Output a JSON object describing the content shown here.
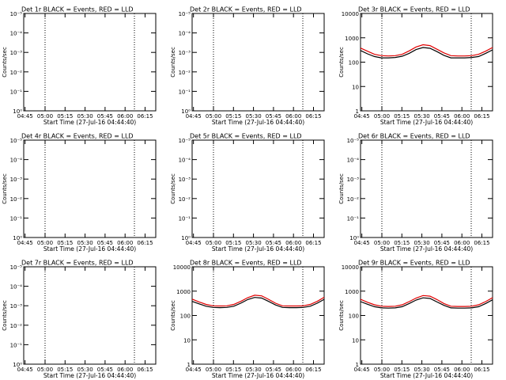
{
  "chart_data": [
    {
      "type": "line",
      "title": "Det 1r BLACK = Events, RED = LLD",
      "xlabel": "Start Time (27-Jul-16 04:44:40)",
      "ylabel": "Counts/sec",
      "x_ticks": [
        "04:45",
        "05:00",
        "05:15",
        "05:30",
        "05:45",
        "06:00",
        "06:15"
      ],
      "y_ticks": [
        "10⁰",
        "10⁻¹",
        "10⁻²",
        "10⁻³",
        "10⁻⁴",
        "10⁻⁵"
      ],
      "scale": "log-neg",
      "vlines": [
        "05:00",
        "06:07"
      ],
      "series": []
    },
    {
      "type": "line",
      "title": "Det 2r BLACK = Events, RED = LLD",
      "xlabel": "Start Time (27-Jul-16 04:44:40)",
      "ylabel": "Counts/sec",
      "x_ticks": [
        "04:45",
        "05:00",
        "05:15",
        "05:30",
        "05:45",
        "06:00",
        "06:15"
      ],
      "y_ticks": [
        "10⁰",
        "10⁻¹",
        "10⁻²",
        "10⁻³",
        "10⁻⁴",
        "10⁻⁵"
      ],
      "scale": "log-neg",
      "vlines": [
        "05:00",
        "06:07"
      ],
      "series": []
    },
    {
      "type": "line",
      "title": "Det 3r BLACK = Events, RED = LLD",
      "xlabel": "Start Time (27-Jul-16 04:44:40)",
      "ylabel": "Counts/sec",
      "x_ticks": [
        "04:45",
        "05:00",
        "05:15",
        "05:30",
        "05:45",
        "06:00",
        "06:15"
      ],
      "y_ticks": [
        "1",
        "10",
        "100",
        "1000",
        "10000"
      ],
      "scale": "log",
      "ylim": [
        1,
        10000
      ],
      "vlines": [
        "05:00",
        "06:07"
      ],
      "series": [
        {
          "color": "#000000",
          "x": [
            0,
            5,
            10,
            15,
            20,
            25,
            30,
            35,
            40,
            45,
            50,
            55,
            60,
            65,
            70,
            75,
            80,
            85,
            90,
            95
          ],
          "y": [
            300,
            220,
            170,
            150,
            150,
            155,
            175,
            230,
            330,
            400,
            370,
            270,
            190,
            150,
            150,
            150,
            155,
            170,
            230,
            320
          ]
        },
        {
          "color": "#e00000",
          "x": [
            0,
            5,
            10,
            15,
            20,
            25,
            30,
            35,
            40,
            45,
            50,
            55,
            60,
            65,
            70,
            75,
            80,
            85,
            90,
            95
          ],
          "y": [
            380,
            280,
            210,
            185,
            180,
            185,
            210,
            290,
            420,
            520,
            480,
            340,
            240,
            185,
            180,
            180,
            185,
            210,
            280,
            400
          ]
        }
      ]
    },
    {
      "type": "line",
      "title": "Det 4r BLACK = Events, RED = LLD",
      "xlabel": "Start Time (27-Jul-16 04:44:40)",
      "ylabel": "Counts/sec",
      "x_ticks": [
        "04:45",
        "05:00",
        "05:15",
        "05:30",
        "05:45",
        "06:00",
        "06:15"
      ],
      "y_ticks": [
        "10⁰",
        "10⁻¹",
        "10⁻²",
        "10⁻³",
        "10⁻⁴",
        "10⁻⁵"
      ],
      "scale": "log-neg",
      "vlines": [
        "05:00",
        "06:07"
      ],
      "series": []
    },
    {
      "type": "line",
      "title": "Det 5r BLACK = Events, RED = LLD",
      "xlabel": "Start Time (27-Jul-16 04:44:40)",
      "ylabel": "Counts/sec",
      "x_ticks": [
        "04:45",
        "05:00",
        "05:15",
        "05:30",
        "05:45",
        "06:00",
        "06:15"
      ],
      "y_ticks": [
        "10⁰",
        "10⁻¹",
        "10⁻²",
        "10⁻³",
        "10⁻⁴",
        "10⁻⁵"
      ],
      "scale": "log-neg",
      "vlines": [
        "05:00",
        "06:07"
      ],
      "series": []
    },
    {
      "type": "line",
      "title": "Det 6r BLACK = Events, RED = LLD",
      "xlabel": "Start Time (27-Jul-16 04:44:40)",
      "ylabel": "Counts/sec",
      "x_ticks": [
        "04:45",
        "05:00",
        "05:15",
        "05:30",
        "05:45",
        "06:00",
        "06:15"
      ],
      "y_ticks": [
        "10⁰",
        "10⁻¹",
        "10⁻²",
        "10⁻³",
        "10⁻⁴",
        "10⁻⁵"
      ],
      "scale": "log-neg",
      "vlines": [
        "05:00",
        "06:07"
      ],
      "series": []
    },
    {
      "type": "line",
      "title": "Det 7r BLACK = Events, RED = LLD",
      "xlabel": "Start Time (27-Jul-16 04:44:40)",
      "ylabel": "Counts/sec",
      "x_ticks": [
        "04:45",
        "05:00",
        "05:15",
        "05:30",
        "05:45",
        "06:00",
        "06:15"
      ],
      "y_ticks": [
        "10⁰",
        "10⁻¹",
        "10⁻²",
        "10⁻³",
        "10⁻⁴",
        "10⁻⁵"
      ],
      "scale": "log-neg",
      "vlines": [
        "05:00",
        "06:07"
      ],
      "series": []
    },
    {
      "type": "line",
      "title": "Det 8r BLACK = Events, RED = LLD",
      "xlabel": "Start Time (27-Jul-16 04:44:40)",
      "ylabel": "Counts/sec",
      "x_ticks": [
        "04:45",
        "05:00",
        "05:15",
        "05:30",
        "05:45",
        "06:00",
        "06:15"
      ],
      "y_ticks": [
        "1",
        "10",
        "100",
        "1000",
        "10000"
      ],
      "scale": "log",
      "ylim": [
        1,
        10000
      ],
      "vlines": [
        "05:00",
        "06:07"
      ],
      "series": [
        {
          "color": "#000000",
          "x": [
            0,
            5,
            10,
            15,
            20,
            25,
            30,
            35,
            40,
            45,
            50,
            55,
            60,
            65,
            70,
            75,
            80,
            85,
            90,
            95
          ],
          "y": [
            380,
            300,
            240,
            215,
            210,
            215,
            240,
            320,
            450,
            550,
            520,
            380,
            270,
            215,
            210,
            210,
            215,
            240,
            320,
            460
          ]
        },
        {
          "color": "#e00000",
          "x": [
            0,
            5,
            10,
            15,
            20,
            25,
            30,
            35,
            40,
            45,
            50,
            55,
            60,
            65,
            70,
            75,
            80,
            85,
            90,
            95
          ],
          "y": [
            470,
            360,
            285,
            250,
            245,
            250,
            285,
            380,
            540,
            680,
            640,
            460,
            320,
            250,
            245,
            245,
            250,
            285,
            380,
            560
          ]
        }
      ]
    },
    {
      "type": "line",
      "title": "Det 9r BLACK = Events, RED = LLD",
      "xlabel": "Start Time (27-Jul-16 04:44:40)",
      "ylabel": "Counts/sec",
      "x_ticks": [
        "04:45",
        "05:00",
        "05:15",
        "05:30",
        "05:45",
        "06:00",
        "06:15"
      ],
      "y_ticks": [
        "1",
        "10",
        "100",
        "1000",
        "10000"
      ],
      "scale": "log",
      "ylim": [
        1,
        10000
      ],
      "vlines": [
        "05:00",
        "06:07"
      ],
      "series": [
        {
          "color": "#000000",
          "x": [
            0,
            5,
            10,
            15,
            20,
            25,
            30,
            35,
            40,
            45,
            50,
            55,
            60,
            65,
            70,
            75,
            80,
            85,
            90,
            95
          ],
          "y": [
            370,
            290,
            230,
            205,
            200,
            205,
            230,
            310,
            430,
            530,
            500,
            360,
            260,
            205,
            200,
            200,
            205,
            230,
            310,
            440
          ]
        },
        {
          "color": "#e00000",
          "x": [
            0,
            5,
            10,
            15,
            20,
            25,
            30,
            35,
            40,
            45,
            50,
            55,
            60,
            65,
            70,
            75,
            80,
            85,
            90,
            95
          ],
          "y": [
            460,
            350,
            275,
            240,
            235,
            240,
            275,
            370,
            520,
            660,
            620,
            450,
            310,
            240,
            235,
            235,
            240,
            275,
            370,
            540
          ]
        }
      ]
    }
  ]
}
